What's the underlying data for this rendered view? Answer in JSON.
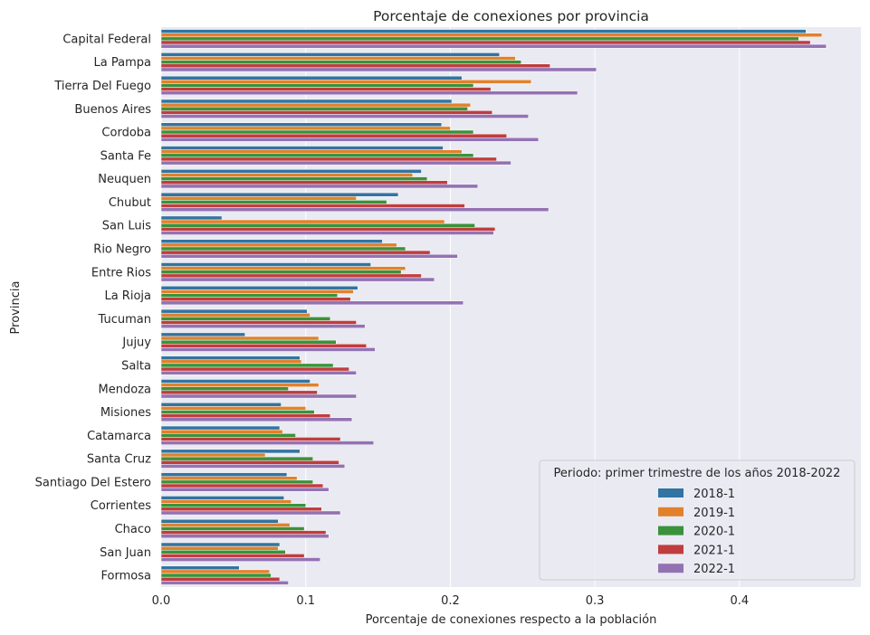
{
  "chart_data": {
    "type": "bar",
    "orientation": "horizontal",
    "title": "Porcentaje de conexiones por provincia",
    "xlabel": "Porcentaje de conexiones respecto a la población",
    "ylabel": "Provincia",
    "xlim": [
      0,
      0.484
    ],
    "xticks": [
      "0.0",
      "0.1",
      "0.2",
      "0.3",
      "0.4"
    ],
    "grid": true,
    "legend_placement": "lower-right",
    "legend_title": "Periodo: primer trimestre de los años 2018-2022",
    "categories": [
      "Capital Federal",
      "La Pampa",
      "Tierra Del Fuego",
      "Buenos Aires",
      "Cordoba",
      "Santa Fe",
      "Neuquen",
      "Chubut",
      "San Luis",
      "Rio Negro",
      "Entre Rios",
      "La Rioja",
      "Tucuman",
      "Jujuy",
      "Salta",
      "Mendoza",
      "Misiones",
      "Catamarca",
      "Santa Cruz",
      "Santiago Del Estero",
      "Corrientes",
      "Chaco",
      "San Juan",
      "Formosa"
    ],
    "series": [
      {
        "name": "2018-1",
        "color": "#3274a1",
        "values": [
          0.446,
          0.234,
          0.208,
          0.201,
          0.194,
          0.195,
          0.18,
          0.164,
          0.042,
          0.153,
          0.145,
          0.136,
          0.101,
          0.058,
          0.096,
          0.103,
          0.083,
          0.082,
          0.096,
          0.087,
          0.085,
          0.081,
          0.082,
          0.054
        ]
      },
      {
        "name": "2019-1",
        "color": "#e1812c",
        "values": [
          0.457,
          0.245,
          0.256,
          0.214,
          0.2,
          0.208,
          0.174,
          0.135,
          0.196,
          0.163,
          0.169,
          0.133,
          0.103,
          0.109,
          0.097,
          0.109,
          0.1,
          0.084,
          0.072,
          0.094,
          0.09,
          0.089,
          0.081,
          0.075
        ]
      },
      {
        "name": "2020-1",
        "color": "#3a923a",
        "values": [
          0.441,
          0.249,
          0.216,
          0.212,
          0.216,
          0.216,
          0.184,
          0.156,
          0.217,
          0.169,
          0.166,
          0.122,
          0.117,
          0.121,
          0.119,
          0.088,
          0.106,
          0.093,
          0.105,
          0.105,
          0.1,
          0.099,
          0.086,
          0.076
        ]
      },
      {
        "name": "2021-1",
        "color": "#c03d3e",
        "values": [
          0.449,
          0.269,
          0.228,
          0.229,
          0.239,
          0.232,
          0.198,
          0.21,
          0.231,
          0.186,
          0.18,
          0.131,
          0.135,
          0.142,
          0.13,
          0.108,
          0.117,
          0.124,
          0.123,
          0.112,
          0.111,
          0.114,
          0.099,
          0.082
        ]
      },
      {
        "name": "2022-1",
        "color": "#9372b2",
        "values": [
          0.46,
          0.301,
          0.288,
          0.254,
          0.261,
          0.242,
          0.219,
          0.268,
          0.23,
          0.205,
          0.189,
          0.209,
          0.141,
          0.148,
          0.135,
          0.135,
          0.132,
          0.147,
          0.127,
          0.116,
          0.124,
          0.116,
          0.11,
          0.088
        ]
      }
    ]
  }
}
